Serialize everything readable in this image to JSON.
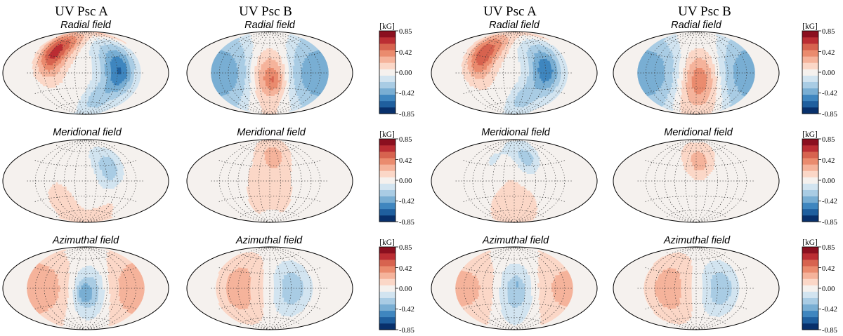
{
  "figure": {
    "column_titles": [
      "UV Psc A",
      "UV Psc B",
      "UV Psc A",
      "UV Psc B"
    ],
    "row_titles": [
      "Radial field",
      "Meridional field",
      "Azimuthal field"
    ]
  },
  "colors": {
    "scale": [
      "#08306b",
      "#1f5f9e",
      "#3f86bf",
      "#79aed3",
      "#a9cce4",
      "#d2e4f0",
      "#f5f1ee",
      "#fbd7c7",
      "#f5b39b",
      "#ea8b6e",
      "#d7634f",
      "#bb2d33",
      "#8b0f1f"
    ],
    "neutral": "#f5f1ee"
  },
  "chart_data": {
    "type": "heatmap",
    "projection": "hammer-aitoff",
    "quantity": "magnetic field",
    "units": "[kG]",
    "range": [
      -0.85,
      0.85
    ],
    "colorbar_ticks": [
      "0.85",
      "0.42",
      "0.00",
      "-0.42",
      "-0.85"
    ],
    "maps": [
      {
        "star": "UV Psc A",
        "component": "Radial field",
        "min": -0.6,
        "max": 0.65,
        "spots": [
          {
            "lon": -105,
            "lat": 40,
            "r": 55,
            "v": 0.65
          },
          {
            "lon": 95,
            "lat": 5,
            "r": 62,
            "v": -0.6
          },
          {
            "lon": 40,
            "lat": -55,
            "r": 40,
            "v": -0.2
          }
        ]
      },
      {
        "star": "UV Psc B",
        "component": "Radial field",
        "min": -0.55,
        "max": 0.7,
        "base": -0.4,
        "spots": [
          {
            "lon": 0,
            "lat": -5,
            "r": 75,
            "v": 0.75
          },
          {
            "lon": 15,
            "lat": -15,
            "r": 28,
            "v": 0.15
          }
        ]
      },
      {
        "star": "UV Psc A",
        "component": "Radial field",
        "min": -0.55,
        "max": 0.55,
        "spots": [
          {
            "lon": -100,
            "lat": 35,
            "r": 55,
            "v": 0.58
          },
          {
            "lon": 90,
            "lat": 5,
            "r": 62,
            "v": -0.55
          },
          {
            "lon": 30,
            "lat": -55,
            "r": 40,
            "v": -0.2
          }
        ]
      },
      {
        "star": "UV Psc B",
        "component": "Radial field",
        "min": -0.5,
        "max": 0.6,
        "base": -0.4,
        "spots": [
          {
            "lon": 10,
            "lat": -10,
            "r": 80,
            "v": 0.8
          }
        ]
      },
      {
        "star": "UV Psc A",
        "component": "Meridional field",
        "min": -0.3,
        "max": 0.15,
        "spots": [
          {
            "lon": 70,
            "lat": 25,
            "r": 45,
            "v": -0.3
          },
          {
            "lon": -80,
            "lat": -40,
            "r": 70,
            "v": 0.1
          },
          {
            "lon": 90,
            "lat": -55,
            "r": 50,
            "v": 0.08
          }
        ]
      },
      {
        "star": "UV Psc B",
        "component": "Meridional field",
        "min": -0.15,
        "max": 0.25,
        "spots": [
          {
            "lon": 15,
            "lat": 50,
            "r": 35,
            "v": 0.25
          },
          {
            "lon": 0,
            "lat": -10,
            "r": 120,
            "v": 0.1
          },
          {
            "lon": 10,
            "lat": -80,
            "r": 20,
            "v": -0.12
          }
        ]
      },
      {
        "star": "UV Psc A",
        "component": "Meridional field",
        "min": -0.3,
        "max": 0.15,
        "spots": [
          {
            "lon": 45,
            "lat": 45,
            "r": 40,
            "v": -0.3
          },
          {
            "lon": -70,
            "lat": 40,
            "r": 45,
            "v": -0.1
          },
          {
            "lon": 0,
            "lat": -55,
            "r": 120,
            "v": 0.1
          }
        ]
      },
      {
        "star": "UV Psc B",
        "component": "Meridional field",
        "min": -0.15,
        "max": 0.25,
        "spots": [
          {
            "lon": 10,
            "lat": 40,
            "r": 35,
            "v": 0.25
          },
          {
            "lon": 0,
            "lat": 10,
            "r": 120,
            "v": 0.1
          },
          {
            "lon": 0,
            "lat": -55,
            "r": 120,
            "v": -0.1
          }
        ]
      },
      {
        "star": "UV Psc A",
        "component": "Azimuthal field",
        "min": -0.45,
        "max": 0.3,
        "base": 0.25,
        "spots": [
          {
            "lon": 10,
            "lat": -5,
            "r": 70,
            "v": -0.55
          },
          {
            "lon": -5,
            "lat": -10,
            "r": 22,
            "v": -0.25
          }
        ]
      },
      {
        "star": "UV Psc B",
        "component": "Azimuthal field",
        "min": -0.3,
        "max": 0.3,
        "spots": [
          {
            "lon": -90,
            "lat": 0,
            "r": 75,
            "v": 0.3
          },
          {
            "lon": 65,
            "lat": 0,
            "r": 60,
            "v": -0.3
          }
        ]
      },
      {
        "star": "UV Psc A",
        "component": "Azimuthal field",
        "min": -0.35,
        "max": 0.3,
        "base": 0.22,
        "spots": [
          {
            "lon": 5,
            "lat": -5,
            "r": 75,
            "v": -0.5
          },
          {
            "lon": 10,
            "lat": 10,
            "r": 12,
            "v": -0.1
          }
        ]
      },
      {
        "star": "UV Psc B",
        "component": "Azimuthal field",
        "min": -0.3,
        "max": 0.3,
        "spots": [
          {
            "lon": -80,
            "lat": 0,
            "r": 75,
            "v": 0.3
          },
          {
            "lon": 70,
            "lat": 0,
            "r": 60,
            "v": -0.3
          }
        ]
      }
    ]
  }
}
